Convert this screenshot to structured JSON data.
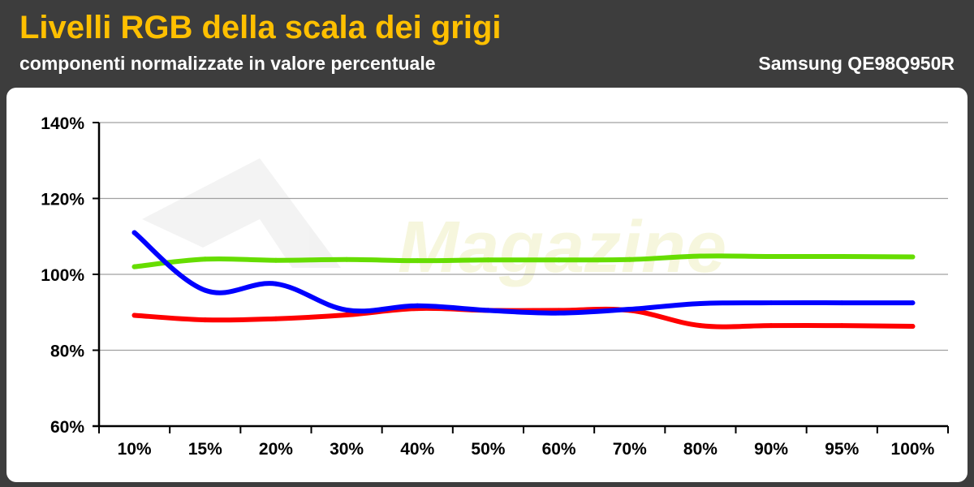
{
  "header": {
    "title": "Livelli RGB della scala dei grigi",
    "subtitle": "componenti normalizzate in valore percentuale",
    "model": "Samsung QE98Q950R"
  },
  "watermark": {
    "text": "Magazine"
  },
  "colors": {
    "header_bg": "#3d3d3d",
    "title": "#ffc000",
    "red": "#ff0000",
    "green": "#66dd00",
    "blue": "#0000ff",
    "grid": "#a0a0a0"
  },
  "chart_data": {
    "type": "line",
    "title": "Livelli RGB della scala dei grigi",
    "subtitle": "componenti normalizzate in valore percentuale",
    "xlabel": "",
    "ylabel": "",
    "categories": [
      "10%",
      "15%",
      "20%",
      "30%",
      "40%",
      "50%",
      "60%",
      "70%",
      "80%",
      "90%",
      "95%",
      "100%"
    ],
    "ylim": [
      60,
      140
    ],
    "yticks": [
      60,
      80,
      100,
      120,
      140
    ],
    "ytick_labels": [
      "60%",
      "80%",
      "100%",
      "120%",
      "140%"
    ],
    "grid": true,
    "legend": "none",
    "series": [
      {
        "color": "#ff0000",
        "values": [
          89.2,
          88.0,
          88.3,
          89.3,
          91.0,
          90.5,
          90.5,
          90.5,
          86.5,
          86.5,
          86.5,
          86.3
        ]
      },
      {
        "color": "#66dd00",
        "values": [
          102.0,
          104.0,
          103.7,
          103.9,
          103.6,
          103.8,
          103.8,
          103.9,
          104.8,
          104.7,
          104.7,
          104.6
        ]
      },
      {
        "color": "#0000ff",
        "values": [
          111.0,
          95.8,
          97.5,
          90.6,
          91.7,
          90.5,
          89.8,
          90.8,
          92.3,
          92.5,
          92.5,
          92.5
        ]
      }
    ]
  }
}
